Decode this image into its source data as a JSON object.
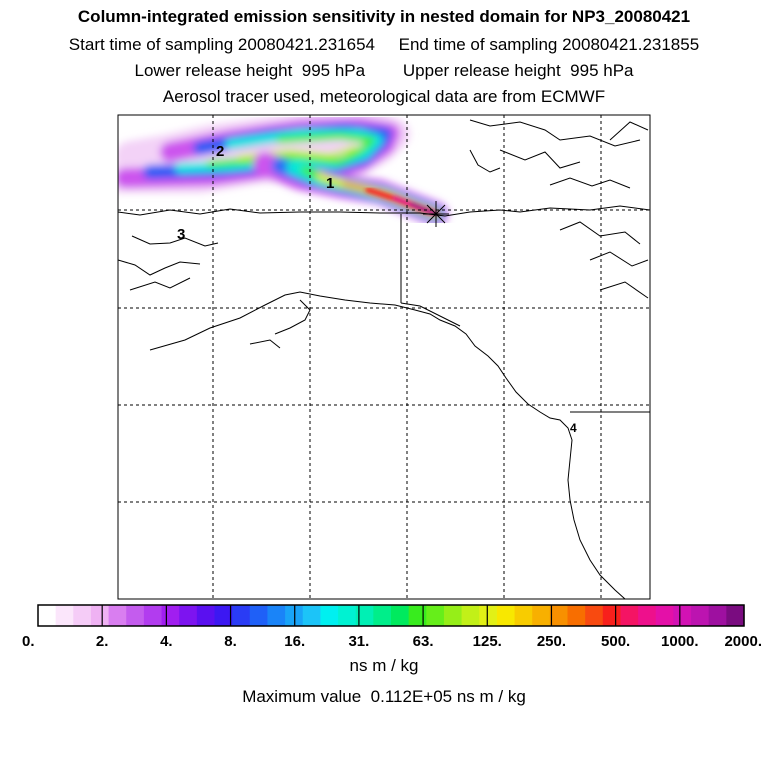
{
  "header": {
    "title": "Column-integrated emission sensitivity in nested domain for NP3_20080421",
    "sampling": "Start time of sampling 20080421.231654     End time of sampling 20080421.231855",
    "release": "Lower release height  995 hPa        Upper release height  995 hPa",
    "tracer": "Aerosol tracer used, meteorological data are from ECMWF"
  },
  "map": {
    "plume_labels": [
      "1",
      "2",
      "3",
      "4"
    ],
    "release_marker": "asterisk"
  },
  "colorbar": {
    "tick_labels": [
      "0.",
      "2.",
      "4.",
      "8.",
      "16.",
      "31.",
      "63.",
      "125.",
      "250.",
      "500.",
      "1000.",
      "2000."
    ],
    "colors": [
      "#ffffff",
      "#fbe6fb",
      "#f5ccf7",
      "#efb2f3",
      "#d97ef0",
      "#c45cee",
      "#b23cef",
      "#a11ef0",
      "#7d14f0",
      "#5a10f0",
      "#3c18f2",
      "#2a3cf5",
      "#1f60f7",
      "#1a84f8",
      "#19a4f8",
      "#1cc4f8",
      "#00f0f0",
      "#00f2d2",
      "#00f0b4",
      "#00ee8a",
      "#00ea5e",
      "#38ec1e",
      "#66ee1a",
      "#96ee18",
      "#c2f018",
      "#e2f016",
      "#f8e800",
      "#f8cc00",
      "#f8b000",
      "#f89000",
      "#f86e00",
      "#f84a10",
      "#f8201c",
      "#f41464",
      "#ee108c",
      "#e410a8",
      "#d212b4",
      "#bc14b0",
      "#9e10a0",
      "#7a0c80"
    ],
    "units": "ns m / kg"
  },
  "footer": {
    "max_value": "Maximum value  0.112E+05 ns m / kg"
  }
}
